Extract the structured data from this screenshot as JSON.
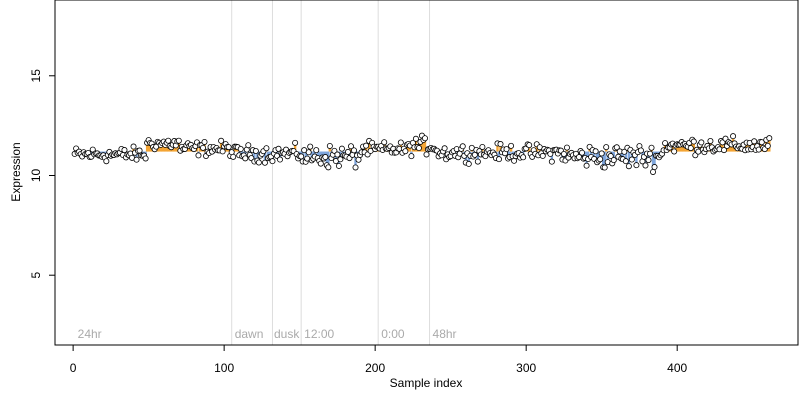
{
  "chart_data": {
    "type": "scatter",
    "xlabel": "Sample index",
    "ylabel": "Expression",
    "xlim": [
      -12,
      480
    ],
    "ylim": [
      1.5,
      18.8
    ],
    "xticks": [
      0,
      100,
      200,
      300,
      400
    ],
    "yticks": [
      5,
      10,
      15
    ],
    "baseline": 11.2,
    "colors": {
      "point_fill": "#ffffff",
      "point_stroke": "#000000",
      "above_baseline": "#f4a534",
      "below_baseline": "#7fa6dc",
      "divider": "#dddddd",
      "annotation": "#aaaaaa"
    },
    "dividers": [
      105,
      132,
      151,
      202,
      236
    ],
    "annotations": [
      {
        "x": 3,
        "text": "24hr"
      },
      {
        "x": 107,
        "text": "dawn"
      },
      {
        "x": 133,
        "text": "dusk"
      },
      {
        "x": 153,
        "text": "12:00"
      },
      {
        "x": 204,
        "text": "0:00"
      },
      {
        "x": 238,
        "text": "48hr"
      }
    ],
    "segments": [
      {
        "start": 1,
        "end": 48,
        "level": 11.05,
        "noise": 0.18
      },
      {
        "start": 49,
        "end": 70,
        "level": 11.6,
        "noise": 0.16
      },
      {
        "start": 71,
        "end": 104,
        "level": 11.35,
        "noise": 0.18
      },
      {
        "start": 105,
        "end": 151,
        "level": 11.1,
        "noise": 0.2
      },
      {
        "start": 152,
        "end": 190,
        "level": 10.95,
        "noise": 0.28
      },
      {
        "start": 191,
        "end": 222,
        "level": 11.3,
        "noise": 0.18
      },
      {
        "start": 223,
        "end": 240,
        "level": 11.5,
        "noise": 0.22
      },
      {
        "start": 241,
        "end": 325,
        "level": 11.15,
        "noise": 0.2
      },
      {
        "start": 326,
        "end": 390,
        "level": 10.95,
        "noise": 0.3
      },
      {
        "start": 391,
        "end": 461,
        "level": 11.5,
        "noise": 0.2
      }
    ]
  }
}
